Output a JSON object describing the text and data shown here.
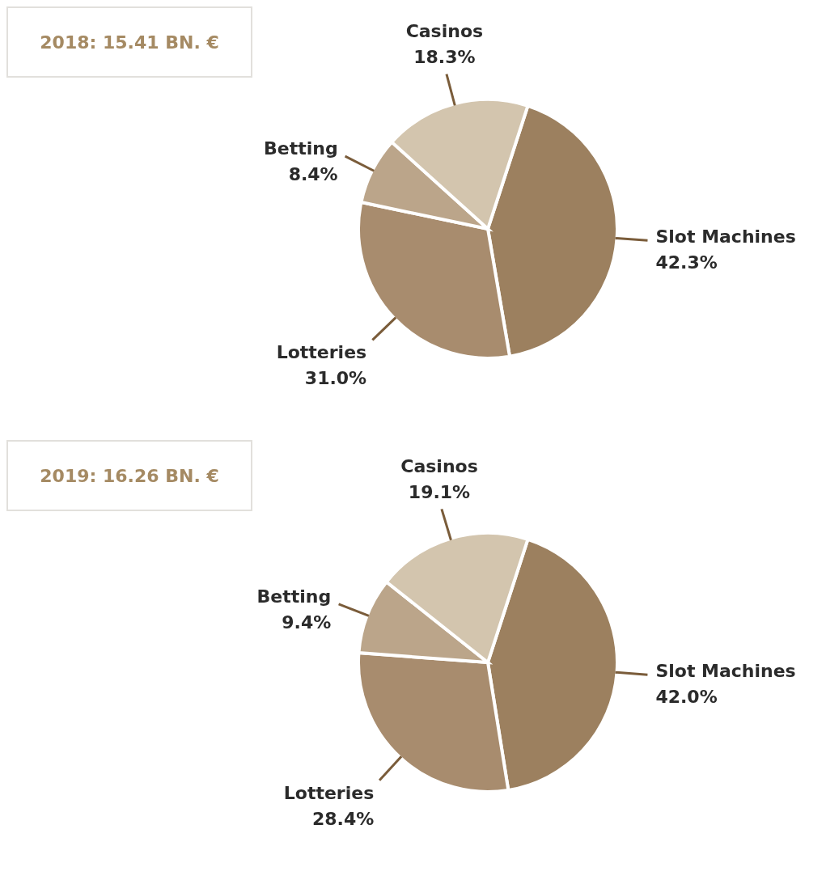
{
  "chart_data": [
    {
      "type": "pie",
      "title": "2018: 15.41 BN. €",
      "categories": [
        "Slot Machines",
        "Lotteries",
        "Betting",
        "Casinos"
      ],
      "values": [
        42.3,
        31.0,
        8.4,
        18.3
      ],
      "value_labels": [
        "42.3%",
        "31.0%",
        "8.4%",
        "18.3%"
      ],
      "colors": [
        "#9c805f",
        "#a88c6e",
        "#bba58a",
        "#d3c5ae"
      ],
      "legend": false
    },
    {
      "type": "pie",
      "title": "2019: 16.26 BN. €",
      "categories": [
        "Slot Machines",
        "Lotteries",
        "Betting",
        "Casinos"
      ],
      "values": [
        42.0,
        28.4,
        9.4,
        19.1
      ],
      "value_labels": [
        "42.0%",
        "28.4%",
        "9.4%",
        "19.1%"
      ],
      "colors": [
        "#9c805f",
        "#a88c6e",
        "#bba58a",
        "#d3c5ae"
      ],
      "legend": false
    }
  ]
}
